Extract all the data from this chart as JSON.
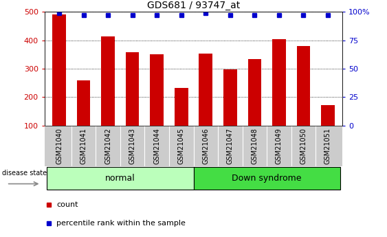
{
  "title": "GDS681 / 93747_at",
  "categories": [
    "GSM21040",
    "GSM21041",
    "GSM21042",
    "GSM21043",
    "GSM21044",
    "GSM21045",
    "GSM21046",
    "GSM21047",
    "GSM21048",
    "GSM21049",
    "GSM21050",
    "GSM21051"
  ],
  "counts": [
    490,
    258,
    413,
    358,
    350,
    233,
    353,
    297,
    333,
    403,
    380,
    172
  ],
  "percentile": [
    99,
    97,
    97,
    97,
    97,
    97,
    99,
    97,
    97,
    97,
    97,
    97
  ],
  "bar_color": "#cc0000",
  "dot_color": "#0000cc",
  "ylim_left": [
    100,
    500
  ],
  "ylim_right": [
    0,
    100
  ],
  "yticks_left": [
    100,
    200,
    300,
    400,
    500
  ],
  "yticks_right": [
    0,
    25,
    50,
    75,
    100
  ],
  "ytick_labels_right": [
    "0",
    "25",
    "50",
    "75",
    "100%"
  ],
  "groups": [
    {
      "label": "normal",
      "start": 0,
      "end": 6,
      "color": "#bbffbb"
    },
    {
      "label": "Down syndrome",
      "start": 6,
      "end": 12,
      "color": "#44dd44"
    }
  ],
  "disease_state_label": "disease state",
  "legend_count_label": "count",
  "legend_percentile_label": "percentile rank within the sample",
  "xlabel_bg_color": "#cccccc",
  "plot_bg_color": "#ffffff"
}
